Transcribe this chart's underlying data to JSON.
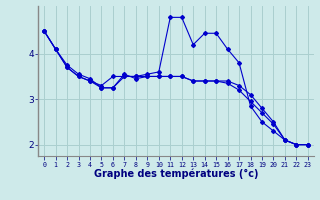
{
  "xlabel": "Graphe des températures (°c)",
  "background_color": "#ceeaea",
  "grid_color": "#aacfcf",
  "line_color": "#0000cc",
  "spine_color": "#888888",
  "x_hours": [
    0,
    1,
    2,
    3,
    4,
    5,
    6,
    7,
    8,
    9,
    10,
    11,
    12,
    13,
    14,
    15,
    16,
    17,
    18,
    19,
    20,
    21,
    22,
    23
  ],
  "line1": [
    4.5,
    4.1,
    3.7,
    3.5,
    3.4,
    3.3,
    3.5,
    3.5,
    3.5,
    3.5,
    3.5,
    3.5,
    3.5,
    3.4,
    3.4,
    3.4,
    3.4,
    3.3,
    3.1,
    2.8,
    2.5,
    2.1,
    2.0,
    2.0
  ],
  "line2": [
    4.5,
    4.1,
    3.75,
    3.55,
    3.45,
    3.25,
    3.25,
    3.5,
    3.5,
    3.55,
    3.6,
    4.8,
    4.8,
    4.2,
    4.45,
    4.45,
    4.1,
    3.8,
    2.85,
    2.5,
    2.3,
    2.1,
    2.0,
    2.0
  ],
  "line3": [
    4.5,
    4.1,
    3.7,
    3.5,
    3.4,
    3.25,
    3.25,
    3.55,
    3.45,
    3.5,
    3.5,
    3.5,
    3.5,
    3.4,
    3.4,
    3.4,
    3.35,
    3.2,
    2.95,
    2.7,
    2.45,
    2.1,
    2.0,
    2.0
  ],
  "ylim": [
    1.75,
    5.05
  ],
  "yticks": [
    2,
    3,
    4
  ],
  "xlim": [
    -0.5,
    23.5
  ]
}
